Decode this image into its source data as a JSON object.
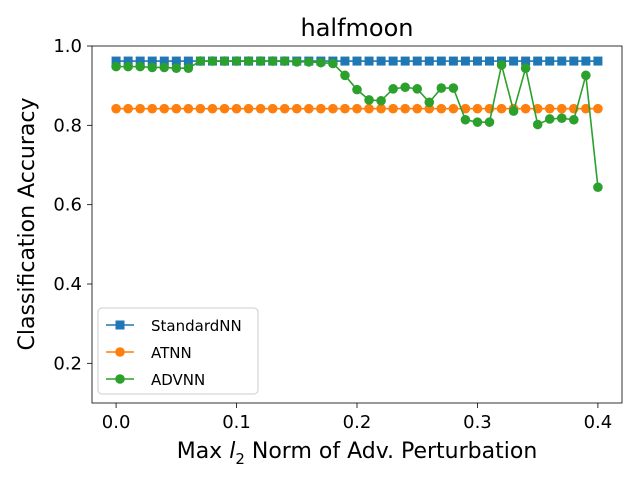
{
  "chart_data": {
    "type": "line",
    "title": "halfmoon",
    "xlabel_pre": "Max ",
    "xlabel_l": "l",
    "xlabel_sub": "2",
    "xlabel_post": " Norm of Adv. Perturbation",
    "ylabel": "Classification Accuracy",
    "xlim": [
      -0.02,
      0.42
    ],
    "ylim": [
      0.1,
      1.0
    ],
    "xticks": [
      0.0,
      0.1,
      0.2,
      0.3,
      0.4
    ],
    "xtick_labels": [
      "0.0",
      "0.1",
      "0.2",
      "0.3",
      "0.4"
    ],
    "yticks": [
      0.2,
      0.4,
      0.6,
      0.8,
      1.0
    ],
    "ytick_labels": [
      "0.2",
      "0.4",
      "0.6",
      "0.8",
      "1.0"
    ],
    "grid": false,
    "legend_position": "lower-left",
    "x": [
      0.0,
      0.01,
      0.02,
      0.03,
      0.04,
      0.05,
      0.06,
      0.07,
      0.08,
      0.09,
      0.1,
      0.11,
      0.12,
      0.13,
      0.14,
      0.15,
      0.16,
      0.17,
      0.18,
      0.19,
      0.2,
      0.21,
      0.22,
      0.23,
      0.24,
      0.25,
      0.26,
      0.27,
      0.28,
      0.29,
      0.3,
      0.31,
      0.32,
      0.33,
      0.34,
      0.35,
      0.36,
      0.37,
      0.38,
      0.39,
      0.4
    ],
    "series": [
      {
        "name": "StandardNN",
        "color": "#1f77b4",
        "marker": "square",
        "values": [
          0.962,
          0.962,
          0.962,
          0.962,
          0.962,
          0.962,
          0.962,
          0.962,
          0.962,
          0.962,
          0.962,
          0.962,
          0.962,
          0.962,
          0.962,
          0.962,
          0.962,
          0.962,
          0.962,
          0.962,
          0.962,
          0.962,
          0.962,
          0.962,
          0.962,
          0.962,
          0.962,
          0.962,
          0.962,
          0.962,
          0.962,
          0.962,
          0.962,
          0.962,
          0.962,
          0.962,
          0.962,
          0.962,
          0.962,
          0.962,
          0.962
        ]
      },
      {
        "name": "ATNN",
        "color": "#ff7f0e",
        "marker": "circle",
        "values": [
          0.842,
          0.842,
          0.842,
          0.842,
          0.842,
          0.842,
          0.842,
          0.842,
          0.842,
          0.842,
          0.842,
          0.842,
          0.842,
          0.842,
          0.842,
          0.842,
          0.842,
          0.842,
          0.842,
          0.842,
          0.842,
          0.842,
          0.842,
          0.842,
          0.842,
          0.842,
          0.842,
          0.842,
          0.842,
          0.842,
          0.842,
          0.842,
          0.842,
          0.842,
          0.842,
          0.842,
          0.842,
          0.842,
          0.842,
          0.842,
          0.842
        ]
      },
      {
        "name": "ADVNN",
        "color": "#2ca02c",
        "marker": "circle",
        "values": [
          0.948,
          0.948,
          0.948,
          0.946,
          0.946,
          0.944,
          0.944,
          0.962,
          0.962,
          0.962,
          0.962,
          0.962,
          0.962,
          0.962,
          0.962,
          0.96,
          0.96,
          0.958,
          0.956,
          0.926,
          0.89,
          0.864,
          0.862,
          0.892,
          0.896,
          0.892,
          0.858,
          0.894,
          0.894,
          0.814,
          0.808,
          0.808,
          0.952,
          0.836,
          0.944,
          0.802,
          0.816,
          0.818,
          0.814,
          0.926,
          0.644
        ]
      }
    ]
  }
}
